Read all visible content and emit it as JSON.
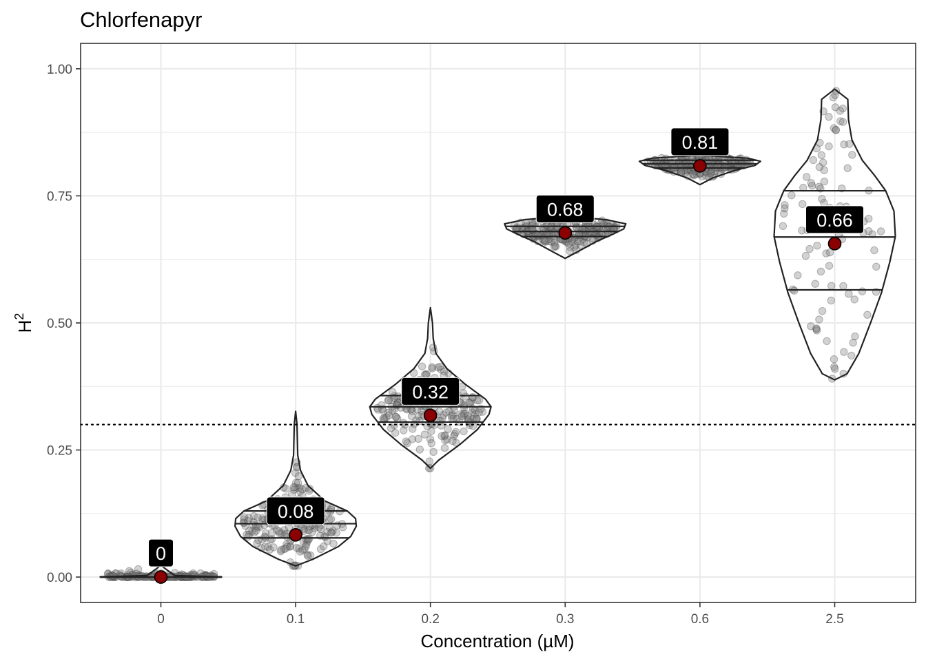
{
  "chart_data": {
    "type": "violin",
    "title": "Chlorfenapyr",
    "xlabel": "Concentration (µM)",
    "ylabel": "H",
    "ylabel_superscript": "2",
    "categories": [
      "0",
      "0.1",
      "0.2",
      "0.3",
      "0.6",
      "2.5"
    ],
    "ylim": [
      -0.05,
      1.05
    ],
    "yticks": [
      0.0,
      0.25,
      0.5,
      0.75,
      1.0
    ],
    "ytick_labels": [
      "0.00",
      "0.25",
      "0.50",
      "0.75",
      "1.00"
    ],
    "threshold_line": 0.3,
    "groups": [
      {
        "category": "0",
        "mean": 0.0,
        "mean_label": "0",
        "min": 0.0,
        "max": 0.02,
        "q1": 0.0,
        "median": 0.0,
        "q3": 0.0,
        "n_points": 150
      },
      {
        "category": "0.1",
        "mean": 0.083,
        "mean_label": "0.08",
        "min": 0.022,
        "max": 0.326,
        "q1": 0.077,
        "median": 0.105,
        "q3": 0.13,
        "n_points": 200
      },
      {
        "category": "0.2",
        "mean": 0.318,
        "mean_label": "0.32",
        "min": 0.214,
        "max": 0.53,
        "q1": 0.305,
        "median": 0.335,
        "q3": 0.357,
        "n_points": 220
      },
      {
        "category": "0.3",
        "mean": 0.677,
        "mean_label": "0.68",
        "min": 0.627,
        "max": 0.71,
        "q1": 0.67,
        "median": 0.68,
        "q3": 0.69,
        "n_points": 220
      },
      {
        "category": "0.6",
        "mean": 0.809,
        "mean_label": "0.81",
        "min": 0.772,
        "max": 0.83,
        "q1": 0.805,
        "median": 0.813,
        "q3": 0.82,
        "n_points": 220
      },
      {
        "category": "2.5",
        "mean": 0.656,
        "mean_label": "0.66",
        "min": 0.388,
        "max": 0.96,
        "q1": 0.565,
        "median": 0.669,
        "q3": 0.76,
        "n_points": 95
      }
    ],
    "colors": {
      "mean_fill": "#8b0000",
      "point_fill": "#7f7f7f",
      "violin_stroke": "#222222",
      "label_bg": "#000000",
      "label_text": "#ffffff",
      "grid": "#ebebeb",
      "panel_border": "#333333"
    }
  }
}
